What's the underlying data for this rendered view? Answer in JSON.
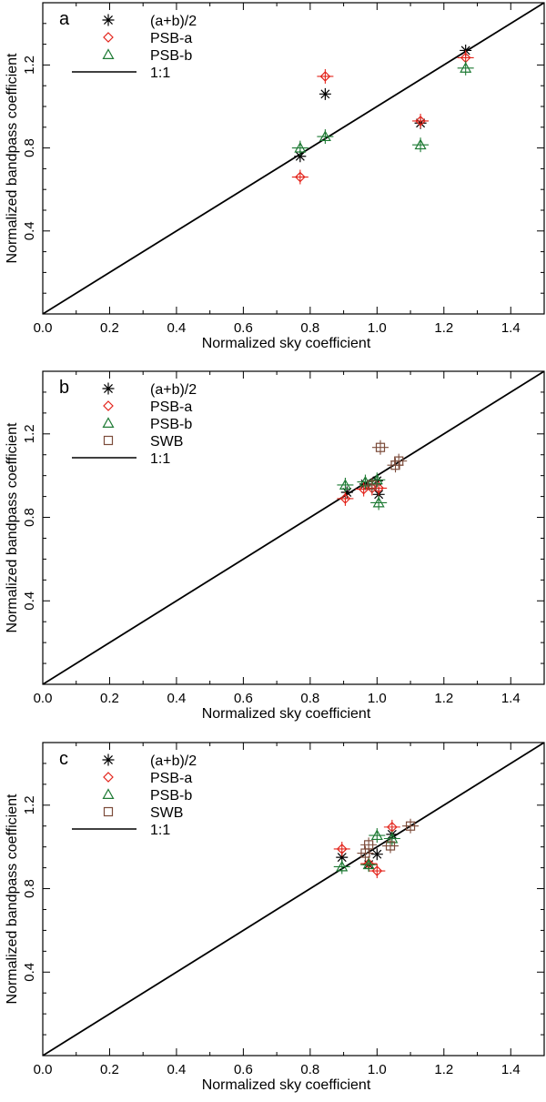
{
  "colors": {
    "avg": "#000000",
    "psb_a": "#e3241b",
    "psb_b": "#1e7a34",
    "swb": "#7b4b3a",
    "line": "#000000"
  },
  "chart_data": [
    {
      "type": "scatter",
      "panel_label": "a",
      "xlabel": "Normalized sky coefficient",
      "ylabel": "Normalized bandpass coefficient",
      "xlim": [
        0.0,
        1.5
      ],
      "ylim": [
        0.0,
        1.5
      ],
      "xticks": [
        "0.0",
        "0.2",
        "0.4",
        "0.6",
        "0.8",
        "1.0",
        "1.2",
        "1.4"
      ],
      "yticks": [
        "0.4",
        "0.8",
        "1.2"
      ],
      "legend": [
        "(a+b)/2",
        "PSB-a",
        "PSB-b",
        "1:1"
      ],
      "reference_line": {
        "name": "1:1",
        "x": [
          0.0,
          1.5
        ],
        "y": [
          0.0,
          1.5
        ]
      },
      "series": [
        {
          "name": "(a+b)/2",
          "marker": "asterisk",
          "points": [
            [
              0.77,
              0.76
            ],
            [
              0.845,
              1.06
            ],
            [
              1.13,
              0.92
            ],
            [
              1.265,
              1.27
            ]
          ]
        },
        {
          "name": "PSB-a",
          "marker": "diamond",
          "points": [
            [
              0.77,
              0.66
            ],
            [
              0.845,
              1.145
            ],
            [
              1.13,
              0.93
            ],
            [
              1.265,
              1.235
            ]
          ]
        },
        {
          "name": "PSB-b",
          "marker": "triangle",
          "points": [
            [
              0.77,
              0.8
            ],
            [
              0.845,
              0.855
            ],
            [
              1.13,
              0.815
            ],
            [
              1.265,
              1.185
            ]
          ]
        }
      ]
    },
    {
      "type": "scatter",
      "panel_label": "b",
      "xlabel": "Normalized sky coefficient",
      "ylabel": "Normalized bandpass coefficient",
      "xlim": [
        0.0,
        1.5
      ],
      "ylim": [
        0.0,
        1.5
      ],
      "xticks": [
        "0.0",
        "0.2",
        "0.4",
        "0.6",
        "0.8",
        "1.0",
        "1.2",
        "1.4"
      ],
      "yticks": [
        "0.4",
        "0.8",
        "1.2"
      ],
      "legend": [
        "(a+b)/2",
        "PSB-a",
        "PSB-b",
        "SWB",
        "1:1"
      ],
      "reference_line": {
        "name": "1:1",
        "x": [
          0.0,
          1.5
        ],
        "y": [
          0.0,
          1.5
        ]
      },
      "series": [
        {
          "name": "(a+b)/2",
          "marker": "asterisk",
          "points": [
            [
              0.91,
              0.92
            ],
            [
              0.965,
              0.96
            ],
            [
              1.0,
              0.975
            ],
            [
              1.005,
              0.91
            ]
          ]
        },
        {
          "name": "PSB-a",
          "marker": "diamond",
          "points": [
            [
              0.905,
              0.89
            ],
            [
              0.96,
              0.935
            ],
            [
              0.985,
              0.94
            ],
            [
              1.005,
              0.94
            ]
          ]
        },
        {
          "name": "PSB-b",
          "marker": "triangle",
          "points": [
            [
              0.905,
              0.955
            ],
            [
              0.965,
              0.97
            ],
            [
              1.0,
              0.98
            ],
            [
              1.005,
              0.87
            ]
          ]
        },
        {
          "name": "SWB",
          "marker": "square",
          "points": [
            [
              0.985,
              0.955
            ],
            [
              1.01,
              1.135
            ],
            [
              1.055,
              1.05
            ],
            [
              1.065,
              1.07
            ]
          ]
        }
      ]
    },
    {
      "type": "scatter",
      "panel_label": "c",
      "xlabel": "Normalized sky coefficient",
      "ylabel": "Normalized bandpass coefficient",
      "xlim": [
        0.0,
        1.5
      ],
      "ylim": [
        0.0,
        1.5
      ],
      "xticks": [
        "0.0",
        "0.2",
        "0.4",
        "0.6",
        "0.8",
        "1.0",
        "1.2",
        "1.4"
      ],
      "yticks": [
        "0.4",
        "0.8",
        "1.2"
      ],
      "legend": [
        "(a+b)/2",
        "PSB-a",
        "PSB-b",
        "SWB",
        "1:1"
      ],
      "reference_line": {
        "name": "1:1",
        "x": [
          0.0,
          1.5
        ],
        "y": [
          0.0,
          1.5
        ]
      },
      "series": [
        {
          "name": "(a+b)/2",
          "marker": "asterisk",
          "points": [
            [
              0.895,
              0.95
            ],
            [
              0.975,
              0.915
            ],
            [
              1.0,
              0.965
            ],
            [
              1.045,
              1.06
            ]
          ]
        },
        {
          "name": "PSB-a",
          "marker": "diamond",
          "points": [
            [
              0.895,
              0.99
            ],
            [
              0.975,
              0.92
            ],
            [
              1.0,
              0.885
            ],
            [
              1.045,
              1.095
            ]
          ]
        },
        {
          "name": "PSB-b",
          "marker": "triangle",
          "points": [
            [
              0.895,
              0.905
            ],
            [
              0.975,
              0.915
            ],
            [
              1.0,
              1.055
            ],
            [
              1.045,
              1.04
            ]
          ]
        },
        {
          "name": "SWB",
          "marker": "square",
          "points": [
            [
              0.965,
              0.97
            ],
            [
              0.975,
              1.01
            ],
            [
              1.04,
              1.005
            ],
            [
              1.1,
              1.1
            ]
          ]
        }
      ]
    }
  ]
}
